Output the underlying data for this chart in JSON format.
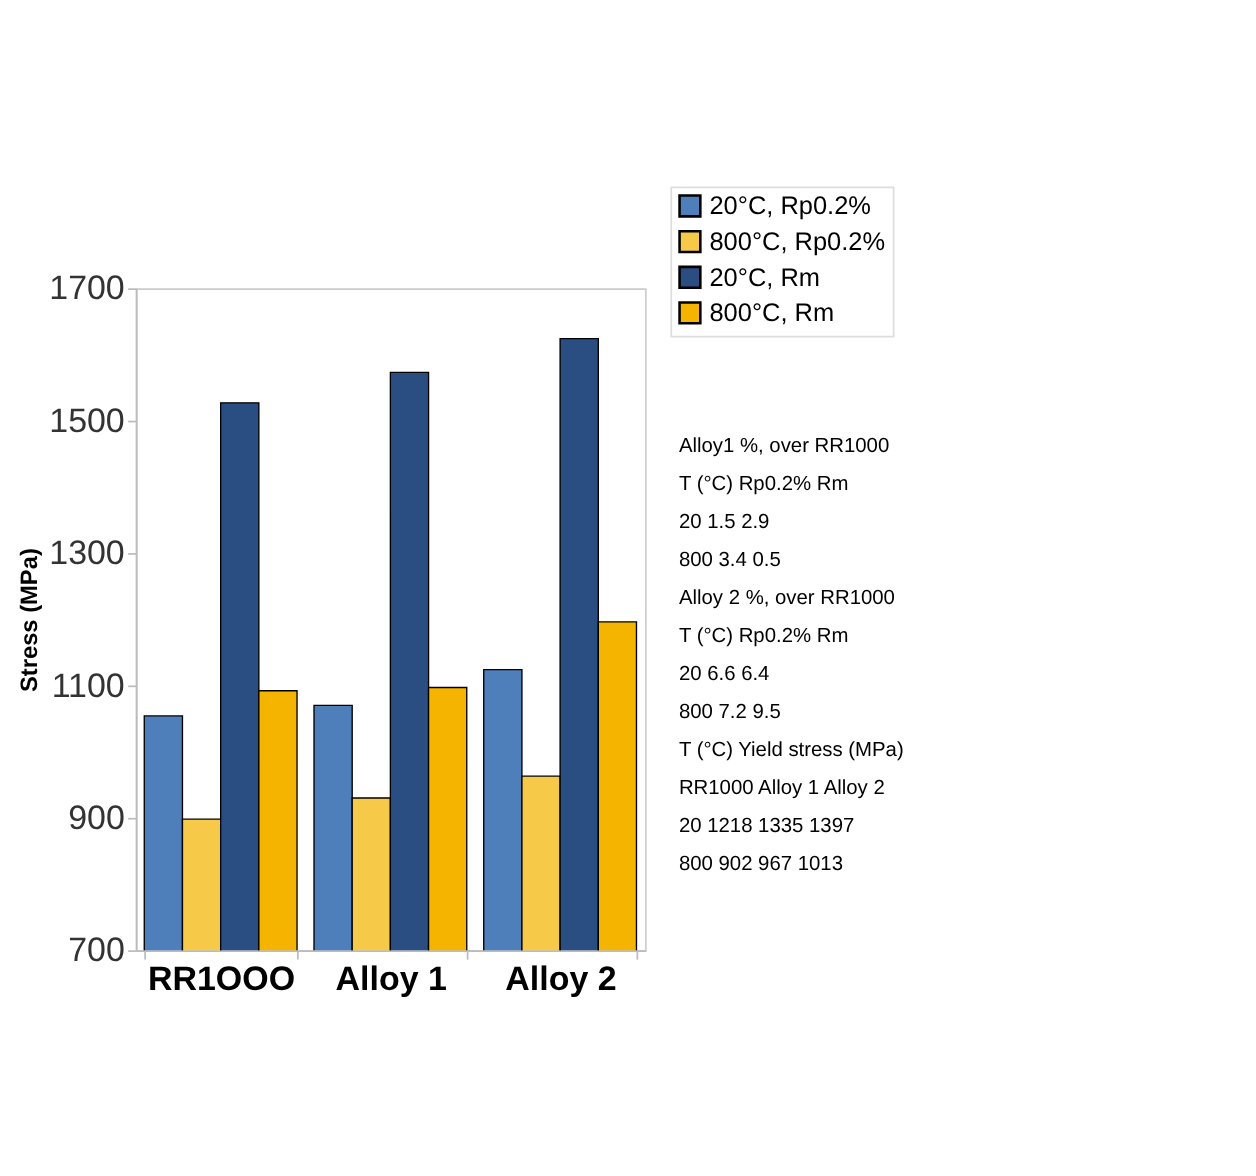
{
  "chart_data": {
    "type": "bar",
    "ylabel": "Stress (MPa)",
    "categories": [
      "RR1OOO",
      "Alloy 1",
      "Alloy 2"
    ],
    "series": [
      {
        "name": "20°C, Rp0.2%",
        "color": "#4f7fbb",
        "values": [
          1054,
          1070,
          1124
        ]
      },
      {
        "name": "800°C, Rp0.2%",
        "color": "#f7c948",
        "values": [
          898,
          930,
          963
        ]
      },
      {
        "name": "20°C, Rm",
        "color": "#2a4d82",
        "values": [
          1527,
          1573,
          1624
        ]
      },
      {
        "name": "800°C, Rm",
        "color": "#f5b400",
        "values": [
          1092,
          1097,
          1196
        ]
      }
    ],
    "ylim": [
      700,
      1700
    ],
    "yticks": [
      700,
      900,
      1100,
      1300,
      1500,
      1700
    ],
    "grid": false,
    "legend": "top right",
    "annotations": [
      "Alloy1 %, over RR1000",
      "T (°C)   Rp0.2%   Rm",
      "20   1.5   2.9",
      "800   3.4   0.5",
      "Alloy 2 %, over RR1000",
      "T (°C)   Rp0.2%   Rm",
      "20   6.6   6.4",
      "800   7.2   9.5",
      "T (°C)   Yield stress (MPa)",
      "RR1000   Alloy 1   Alloy 2",
      "20   1218   1335   1397",
      "800   902   967   1013"
    ]
  }
}
